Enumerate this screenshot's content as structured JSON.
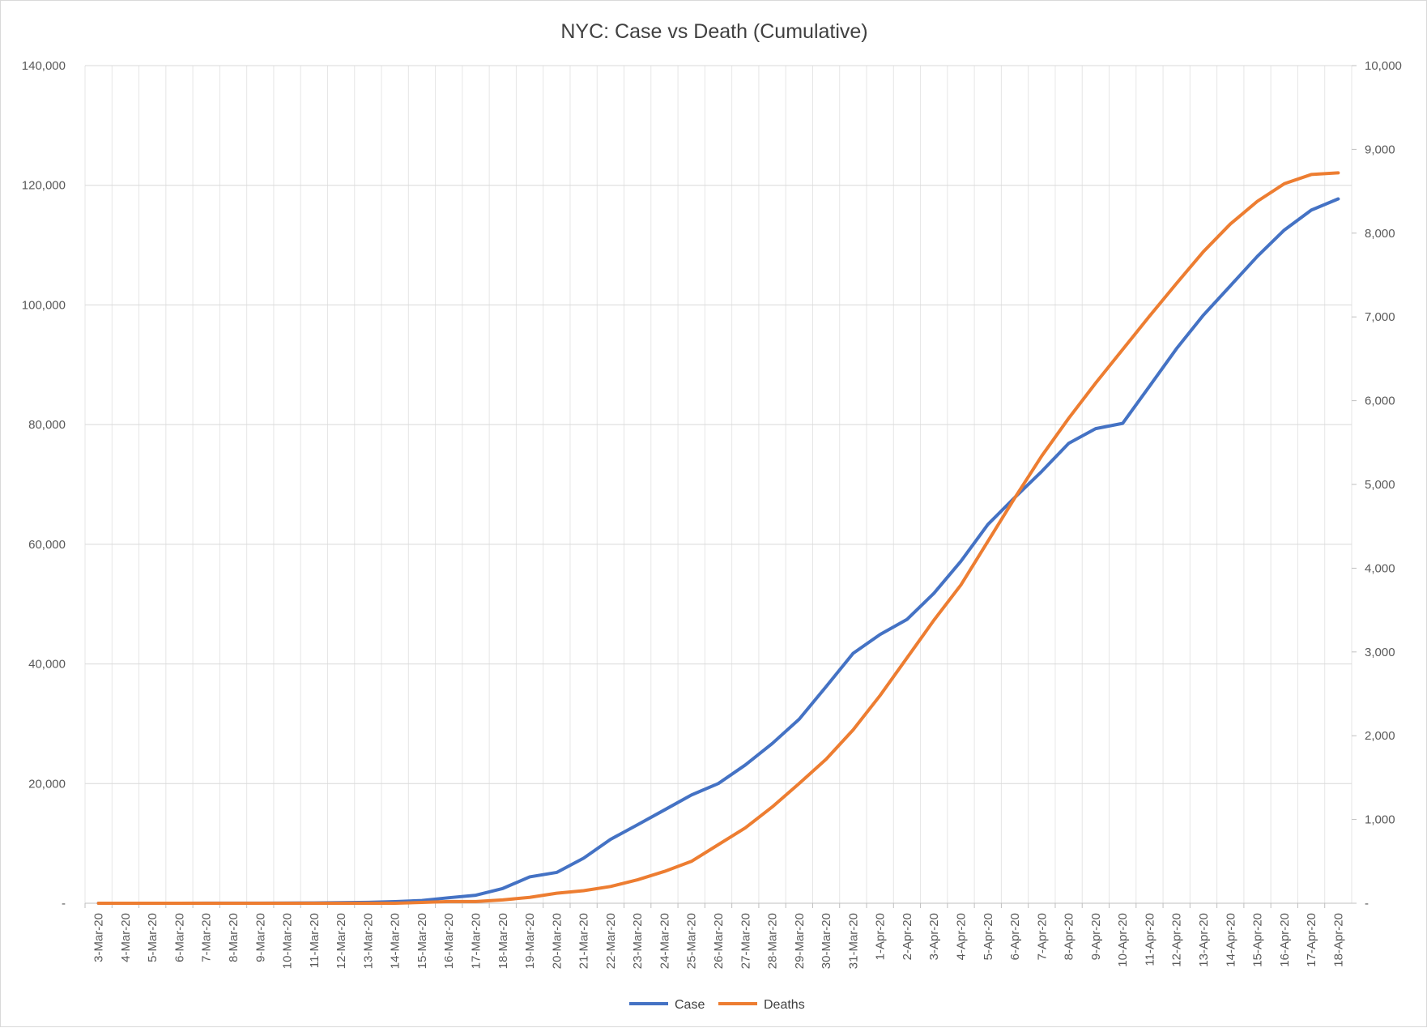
{
  "chart_data": {
    "type": "line",
    "title": "NYC: Case vs Death (Cumulative)",
    "xlabel": "",
    "ylabel": "",
    "y2label": "",
    "categories": [
      "3-Mar-20",
      "4-Mar-20",
      "5-Mar-20",
      "6-Mar-20",
      "7-Mar-20",
      "8-Mar-20",
      "9-Mar-20",
      "10-Mar-20",
      "11-Mar-20",
      "12-Mar-20",
      "13-Mar-20",
      "14-Mar-20",
      "15-Mar-20",
      "16-Mar-20",
      "17-Mar-20",
      "18-Mar-20",
      "19-Mar-20",
      "20-Mar-20",
      "21-Mar-20",
      "22-Mar-20",
      "23-Mar-20",
      "24-Mar-20",
      "25-Mar-20",
      "26-Mar-20",
      "27-Mar-20",
      "28-Mar-20",
      "29-Mar-20",
      "30-Mar-20",
      "31-Mar-20",
      "1-Apr-20",
      "2-Apr-20",
      "3-Apr-20",
      "4-Apr-20",
      "5-Apr-20",
      "6-Apr-20",
      "7-Apr-20",
      "8-Apr-20",
      "9-Apr-20",
      "10-Apr-20",
      "11-Apr-20",
      "12-Apr-20",
      "13-Apr-20",
      "14-Apr-20",
      "15-Apr-20",
      "16-Apr-20",
      "17-Apr-20",
      "18-Apr-20"
    ],
    "series": [
      {
        "name": "Case",
        "axis": "left",
        "color": "#4472C4",
        "values": [
          2,
          3,
          4,
          5,
          11,
          13,
          20,
          36,
          52,
          95,
          154,
          269,
          463,
          923,
          1339,
          2469,
          4408,
          5151,
          7530,
          10679,
          13119,
          15597,
          18089,
          20011,
          23112,
          26697,
          30766,
          36221,
          41771,
          44915,
          47439,
          51809,
          57159,
          63306,
          67820,
          72181,
          76876,
          79326,
          80204,
          86422,
          92693,
          98309,
          103208,
          108123,
          112520,
          115850,
          117725
        ]
      },
      {
        "name": "Deaths",
        "axis": "right",
        "color": "#ED7D31",
        "values": [
          0,
          0,
          0,
          0,
          0,
          0,
          0,
          0,
          0,
          0,
          0,
          0,
          10,
          20,
          20,
          40,
          70,
          120,
          150,
          200,
          280,
          380,
          500,
          700,
          900,
          1150,
          1430,
          1720,
          2070,
          2480,
          2930,
          3380,
          3800,
          4320,
          4840,
          5340,
          5790,
          6210,
          6610,
          7010,
          7400,
          7780,
          8110,
          8380,
          8590,
          8700,
          8720
        ]
      }
    ],
    "ylim": [
      0,
      140000
    ],
    "y2lim": [
      0,
      10000
    ],
    "yticks": [
      "-",
      "20,000",
      "40,000",
      "60,000",
      "80,000",
      "100,000",
      "120,000",
      "140,000"
    ],
    "y2ticks": [
      "-",
      "1,000",
      "2,000",
      "3,000",
      "4,000",
      "5,000",
      "6,000",
      "7,000",
      "8,000",
      "9,000",
      "10,000"
    ],
    "grid": true,
    "legend_position": "bottom",
    "legend": [
      "Case",
      "Deaths"
    ]
  }
}
